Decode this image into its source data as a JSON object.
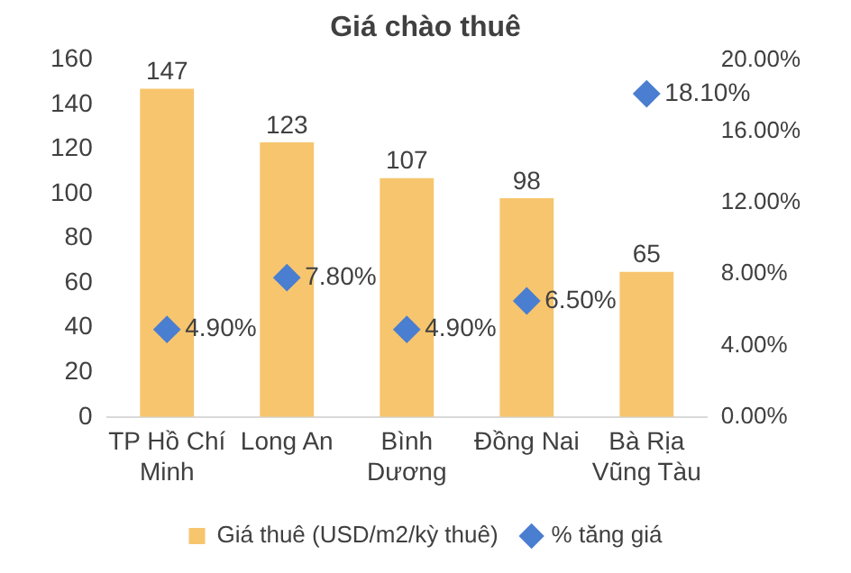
{
  "chart_data": {
    "type": "bar",
    "title": "Giá chào thuê",
    "categories": [
      "TP Hồ Chí Minh",
      "Long An",
      "Bình Dương",
      "Đồng Nai",
      "Bà Rịa Vũng Tàu"
    ],
    "series": [
      {
        "name": "Giá thuê (USD/m2/kỳ thuê)",
        "color": "#f7c56e",
        "values": [
          147,
          123,
          107,
          98,
          65
        ],
        "value_labels": [
          "147",
          "123",
          "107",
          "98",
          "65"
        ]
      },
      {
        "name": "% tăng giá",
        "type": "scatter",
        "axis": "y2",
        "color": "#4a7ed0",
        "marker": "diamond",
        "values": [
          4.9,
          7.8,
          4.9,
          6.5,
          18.1
        ],
        "value_labels": [
          "4.90%",
          "7.80%",
          "4.90%",
          "6.50%",
          "18.10%"
        ]
      }
    ],
    "ylim": [
      0,
      160
    ],
    "yticks": [
      0,
      20,
      40,
      60,
      80,
      100,
      120,
      140,
      160
    ],
    "y2lim": [
      0,
      20
    ],
    "y2ticks": [
      {
        "value": 0,
        "label": "0.00%"
      },
      {
        "value": 4,
        "label": "4.00%"
      },
      {
        "value": 8,
        "label": "8.00%"
      },
      {
        "value": 12,
        "label": "12.00%"
      },
      {
        "value": 16,
        "label": "16.00%"
      },
      {
        "value": 20,
        "label": "20.00%"
      }
    ],
    "grid": false,
    "legend": "bottom"
  }
}
